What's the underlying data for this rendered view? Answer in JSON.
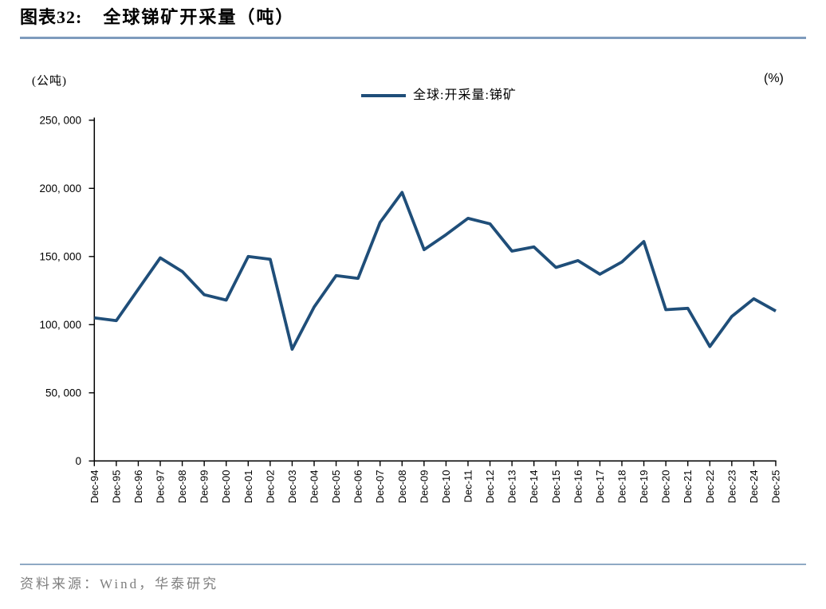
{
  "title": {
    "label": "图表32:",
    "text": "全球锑矿开采量（吨）"
  },
  "axis_units": {
    "left": "(公吨)",
    "right": "(%)"
  },
  "legend": {
    "label": "全球:开采量:锑矿",
    "color": "#1F4E79"
  },
  "source": {
    "text": "资料来源：Wind，华泰研究"
  },
  "chart_data": {
    "type": "line",
    "title": "全球锑矿开采量（吨）",
    "ylabel": "(公吨)",
    "secondary_axis_label": "(%)",
    "legend_entries": [
      "全球:开采量:锑矿"
    ],
    "legend_position": "top-center",
    "grid": false,
    "line_color": "#1F4E79",
    "ylim": [
      0,
      250000
    ],
    "y_ticks": [
      0,
      50000,
      100000,
      150000,
      200000,
      250000
    ],
    "y_tick_labels": [
      "0",
      "50, 000",
      "100, 000",
      "150, 000",
      "200, 000",
      "250, 000"
    ],
    "x": [
      "Dec-94",
      "Dec-95",
      "Dec-96",
      "Dec-97",
      "Dec-98",
      "Dec-99",
      "Dec-00",
      "Dec-01",
      "Dec-02",
      "Dec-03",
      "Dec-04",
      "Dec-05",
      "Dec-06",
      "Dec-07",
      "Dec-08",
      "Dec-09",
      "Dec-10",
      "Dec-11",
      "Dec-12",
      "Dec-13",
      "Dec-14",
      "Dec-15",
      "Dec-16",
      "Dec-17",
      "Dec-18",
      "Dec-19",
      "Dec-20",
      "Dec-21",
      "Dec-22",
      "Dec-23",
      "Dec-24",
      "Dec-25"
    ],
    "values": [
      105000,
      103000,
      126000,
      149000,
      139000,
      122000,
      118000,
      150000,
      148000,
      82000,
      113000,
      136000,
      134000,
      175000,
      197000,
      155000,
      166000,
      178000,
      174000,
      154000,
      157000,
      142000,
      147000,
      137000,
      146000,
      161000,
      111000,
      112000,
      84000,
      106000,
      119000,
      110000
    ]
  }
}
